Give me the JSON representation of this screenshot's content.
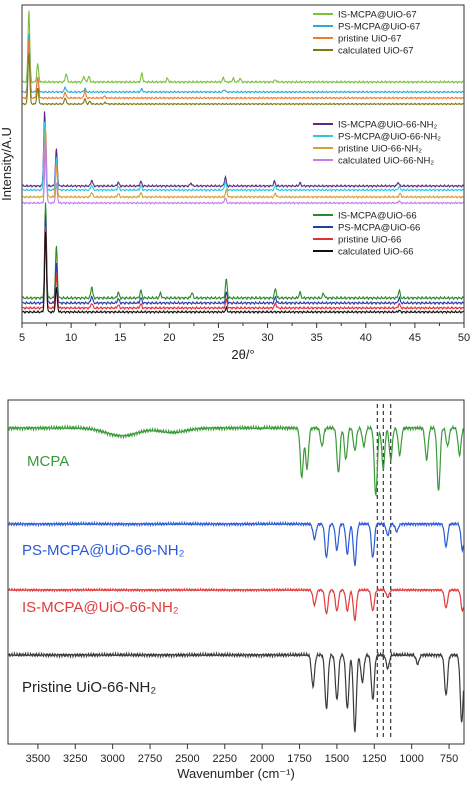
{
  "chart_data": [
    {
      "type": "line",
      "panel": "top",
      "xlabel": "2θ/°",
      "ylabel": "Intensity/A.U",
      "xlim": [
        5,
        50
      ],
      "x_ticks": [
        5,
        10,
        15,
        20,
        25,
        30,
        35,
        40,
        45,
        50
      ],
      "y_ticks_shown": false,
      "colors": {
        "is": "#7bbf3f",
        "ps": "#2eaad7",
        "pristine": "#f07a2a",
        "calc": "#7a7a10",
        "is_nh2": "#5a2a8a",
        "ps_nh2": "#2fc6e0",
        "pristine_nh2": "#d8a030",
        "calc_nh2": "#c080e8",
        "is_66": "#2a8a2a",
        "ps_66": "#2a3aa8",
        "pristine_66": "#e03030",
        "calc_66": "#111111"
      },
      "groups": [
        {
          "legend_position": "top-right",
          "series": [
            {
              "name": "IS-MCPA@UiO-67",
              "color_key": "is",
              "peaks": [
                [
                  5.7,
                  1.0
                ],
                [
                  6.6,
                  0.25
                ],
                [
                  9.5,
                  0.12
                ],
                [
                  11.3,
                  0.08
                ],
                [
                  11.8,
                  0.08
                ],
                [
                  17.2,
                  0.12
                ],
                [
                  19.8,
                  0.05
                ],
                [
                  25.5,
                  0.06
                ],
                [
                  26.5,
                  0.05
                ],
                [
                  27.2,
                  0.05
                ],
                [
                  30.8,
                  0.03
                ]
              ]
            },
            {
              "name": "PS-MCPA@UiO-67",
              "color_key": "ps",
              "peaks": [
                [
                  5.7,
                  0.95
                ],
                [
                  6.6,
                  0.22
                ],
                [
                  9.4,
                  0.08
                ],
                [
                  11.4,
                  0.06
                ],
                [
                  17.2,
                  0.05
                ],
                [
                  25.6,
                  0.04
                ]
              ]
            },
            {
              "name": "pristine UiO-67",
              "color_key": "pristine",
              "peaks": [
                [
                  5.7,
                  1.0
                ],
                [
                  6.6,
                  0.35
                ],
                [
                  9.4,
                  0.1
                ],
                [
                  11.4,
                  0.12
                ],
                [
                  13.4,
                  0.03
                ]
              ]
            },
            {
              "name": "calculated UiO-67",
              "color_key": "calc",
              "peaks": [
                [
                  5.7,
                  1.0
                ],
                [
                  6.6,
                  0.3
                ],
                [
                  9.4,
                  0.12
                ],
                [
                  11.4,
                  0.1
                ],
                [
                  11.9,
                  0.05
                ],
                [
                  13.5,
                  0.03
                ]
              ]
            }
          ]
        },
        {
          "legend_position": "middle-right",
          "series": [
            {
              "name": "IS-MCPA@UiO-66-NH₂",
              "color_key": "is_nh2",
              "peaks": [
                [
                  7.3,
                  1.0
                ],
                [
                  8.5,
                  0.5
                ],
                [
                  12.1,
                  0.08
                ],
                [
                  14.8,
                  0.05
                ],
                [
                  17.1,
                  0.06
                ],
                [
                  22.2,
                  0.04
                ],
                [
                  25.7,
                  0.12
                ],
                [
                  30.7,
                  0.06
                ],
                [
                  33.3,
                  0.04
                ],
                [
                  43.3,
                  0.05
                ]
              ]
            },
            {
              "name": "PS-MCPA@UiO-66-NH₂",
              "color_key": "ps_nh2",
              "peaks": [
                [
                  7.3,
                  0.95
                ],
                [
                  8.5,
                  0.45
                ],
                [
                  12.1,
                  0.07
                ],
                [
                  14.8,
                  0.05
                ],
                [
                  17.1,
                  0.06
                ],
                [
                  25.7,
                  0.12
                ],
                [
                  30.8,
                  0.06
                ],
                [
                  43.4,
                  0.05
                ]
              ]
            },
            {
              "name": "pristine UiO-66-NH₂",
              "color_key": "pristine_nh2",
              "peaks": [
                [
                  7.4,
                  1.0
                ],
                [
                  8.5,
                  0.45
                ],
                [
                  12.1,
                  0.07
                ],
                [
                  14.8,
                  0.05
                ],
                [
                  17.1,
                  0.06
                ],
                [
                  25.8,
                  0.1
                ],
                [
                  30.8,
                  0.05
                ],
                [
                  43.5,
                  0.05
                ]
              ]
            },
            {
              "name": "calculated UiO-66-NH₂",
              "color_key": "calc_nh2",
              "peaks": [
                [
                  7.4,
                  1.0
                ],
                [
                  8.5,
                  0.3
                ],
                [
                  25.7,
                  0.08
                ],
                [
                  43.4,
                  0.03
                ]
              ]
            }
          ]
        },
        {
          "legend_position": "bottom-right",
          "series": [
            {
              "name": "IS-MCPA@UiO-66",
              "color_key": "is_66",
              "peaks": [
                [
                  7.4,
                  1.0
                ],
                [
                  8.5,
                  0.55
                ],
                [
                  12.1,
                  0.12
                ],
                [
                  14.8,
                  0.06
                ],
                [
                  17.1,
                  0.08
                ],
                [
                  19.1,
                  0.05
                ],
                [
                  22.3,
                  0.06
                ],
                [
                  25.8,
                  0.2
                ],
                [
                  30.8,
                  0.1
                ],
                [
                  33.3,
                  0.06
                ],
                [
                  35.7,
                  0.05
                ],
                [
                  43.4,
                  0.08
                ]
              ]
            },
            {
              "name": "PS-MCPA@UiO-66",
              "color_key": "ps_66",
              "peaks": [
                [
                  7.4,
                  1.0
                ],
                [
                  8.5,
                  0.45
                ],
                [
                  12.1,
                  0.08
                ],
                [
                  14.8,
                  0.05
                ],
                [
                  17.1,
                  0.06
                ],
                [
                  25.8,
                  0.12
                ],
                [
                  30.8,
                  0.07
                ],
                [
                  43.4,
                  0.06
                ]
              ]
            },
            {
              "name": "pristine UiO-66",
              "color_key": "pristine_66",
              "peaks": [
                [
                  7.4,
                  1.0
                ],
                [
                  8.5,
                  0.4
                ],
                [
                  12.1,
                  0.06
                ],
                [
                  14.8,
                  0.04
                ],
                [
                  17.1,
                  0.05
                ],
                [
                  25.8,
                  0.1
                ],
                [
                  30.8,
                  0.06
                ],
                [
                  43.4,
                  0.05
                ]
              ]
            },
            {
              "name": "calculated UiO-66",
              "color_key": "calc_66",
              "peaks": [
                [
                  7.4,
                  1.0
                ],
                [
                  8.5,
                  0.3
                ],
                [
                  25.8,
                  0.05
                ],
                [
                  43.4,
                  0.02
                ]
              ]
            }
          ]
        }
      ]
    },
    {
      "type": "line",
      "panel": "bottom",
      "xlabel": "Wavenumber (cm⁻¹)",
      "xlim": [
        3700,
        650
      ],
      "x_ticks": [
        3500,
        3250,
        3000,
        2750,
        2500,
        2250,
        2000,
        1750,
        1500,
        1250,
        1000,
        750
      ],
      "y_ticks_shown": false,
      "dashed_markers_cm-1": [
        1230,
        1190,
        1140
      ],
      "series": [
        {
          "name": "MCPA",
          "color": "#3a9a3a",
          "bands": [
            [
              2900,
              0.06
            ],
            [
              2600,
              0.05
            ],
            [
              3000,
              0.04
            ],
            [
              1735,
              0.55
            ],
            [
              1700,
              0.45
            ],
            [
              1600,
              0.2
            ],
            [
              1490,
              0.5
            ],
            [
              1440,
              0.35
            ],
            [
              1380,
              0.25
            ],
            [
              1320,
              0.2
            ],
            [
              1240,
              0.75
            ],
            [
              1190,
              0.45
            ],
            [
              1140,
              0.35
            ],
            [
              1080,
              0.3
            ],
            [
              900,
              0.35
            ],
            [
              820,
              0.7
            ],
            [
              760,
              0.2
            ],
            [
              680,
              0.3
            ]
          ]
        },
        {
          "name": "PS-MCPA@UiO-66-NH₂",
          "color": "#2a5ad8",
          "bands": [
            [
              1650,
              0.2
            ],
            [
              1570,
              0.45
            ],
            [
              1500,
              0.35
            ],
            [
              1430,
              0.4
            ],
            [
              1380,
              0.55
            ],
            [
              1260,
              0.45
            ],
            [
              1160,
              0.15
            ],
            [
              1100,
              0.1
            ],
            [
              770,
              0.3
            ],
            [
              660,
              0.35
            ]
          ]
        },
        {
          "name": "IS-MCPA@UiO-66-NH₂",
          "color": "#e03a3a",
          "bands": [
            [
              1650,
              0.25
            ],
            [
              1570,
              0.4
            ],
            [
              1500,
              0.35
            ],
            [
              1430,
              0.35
            ],
            [
              1380,
              0.5
            ],
            [
              1260,
              0.35
            ],
            [
              1160,
              0.12
            ],
            [
              770,
              0.3
            ],
            [
              660,
              0.35
            ]
          ]
        },
        {
          "name": "Pristine UiO-66-NH₂",
          "color": "#3a3a3a",
          "bands": [
            [
              1660,
              0.35
            ],
            [
              1570,
              0.6
            ],
            [
              1500,
              0.5
            ],
            [
              1430,
              0.6
            ],
            [
              1380,
              0.85
            ],
            [
              1330,
              0.3
            ],
            [
              1260,
              0.5
            ],
            [
              1160,
              0.15
            ],
            [
              960,
              0.1
            ],
            [
              770,
              0.45
            ],
            [
              665,
              0.75
            ]
          ]
        }
      ]
    }
  ]
}
